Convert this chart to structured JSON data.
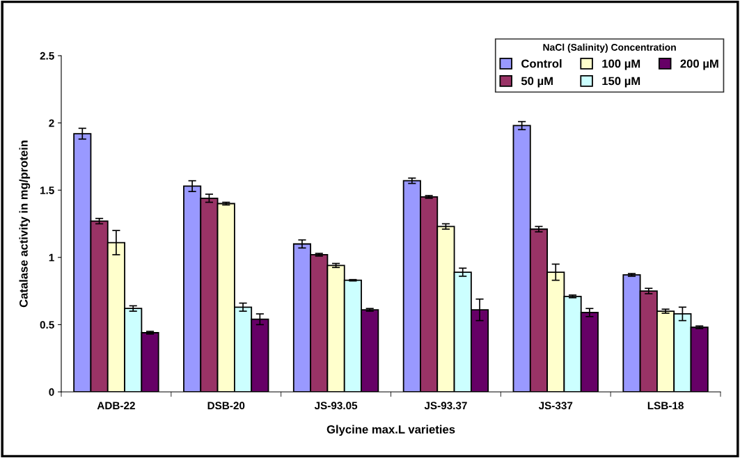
{
  "chart_data": {
    "type": "bar",
    "xlabel": "Glycine max.L varieties",
    "ylabel": "Catalase activity in mg/protein",
    "legend_title": "NaCl (Salinity) Concentration",
    "legend": "top right",
    "grid": false,
    "categories": [
      "ADB-22",
      "DSB-20",
      "JS-93.05",
      "JS-93.37",
      "JS-337",
      "LSB-18"
    ],
    "ylim": [
      0,
      2.5
    ],
    "yticks": [
      0,
      0.5,
      1,
      1.5,
      2,
      2.5
    ],
    "series": [
      {
        "name": "Control",
        "color": "#9999ff",
        "values": [
          1.92,
          1.53,
          1.1,
          1.57,
          1.98,
          0.87
        ],
        "errors": [
          0.04,
          0.04,
          0.03,
          0.02,
          0.03,
          0.01
        ]
      },
      {
        "name": "50 µM",
        "color": "#993366",
        "values": [
          1.27,
          1.44,
          1.02,
          1.45,
          1.21,
          0.75
        ],
        "errors": [
          0.02,
          0.03,
          0.01,
          0.01,
          0.02,
          0.02
        ]
      },
      {
        "name": "100 µM",
        "color": "#ffffcc",
        "values": [
          1.11,
          1.4,
          0.94,
          1.23,
          0.89,
          0.6
        ],
        "errors": [
          0.09,
          0.01,
          0.015,
          0.02,
          0.06,
          0.015
        ]
      },
      {
        "name": "150 µM",
        "color": "#ccffff",
        "values": [
          0.62,
          0.63,
          0.83,
          0.89,
          0.71,
          0.58
        ],
        "errors": [
          0.02,
          0.03,
          0.005,
          0.03,
          0.01,
          0.05
        ]
      },
      {
        "name": "200 µM",
        "color": "#660066",
        "values": [
          0.44,
          0.54,
          0.61,
          0.61,
          0.59,
          0.48
        ],
        "errors": [
          0.01,
          0.04,
          0.01,
          0.08,
          0.03,
          0.01
        ]
      }
    ]
  }
}
